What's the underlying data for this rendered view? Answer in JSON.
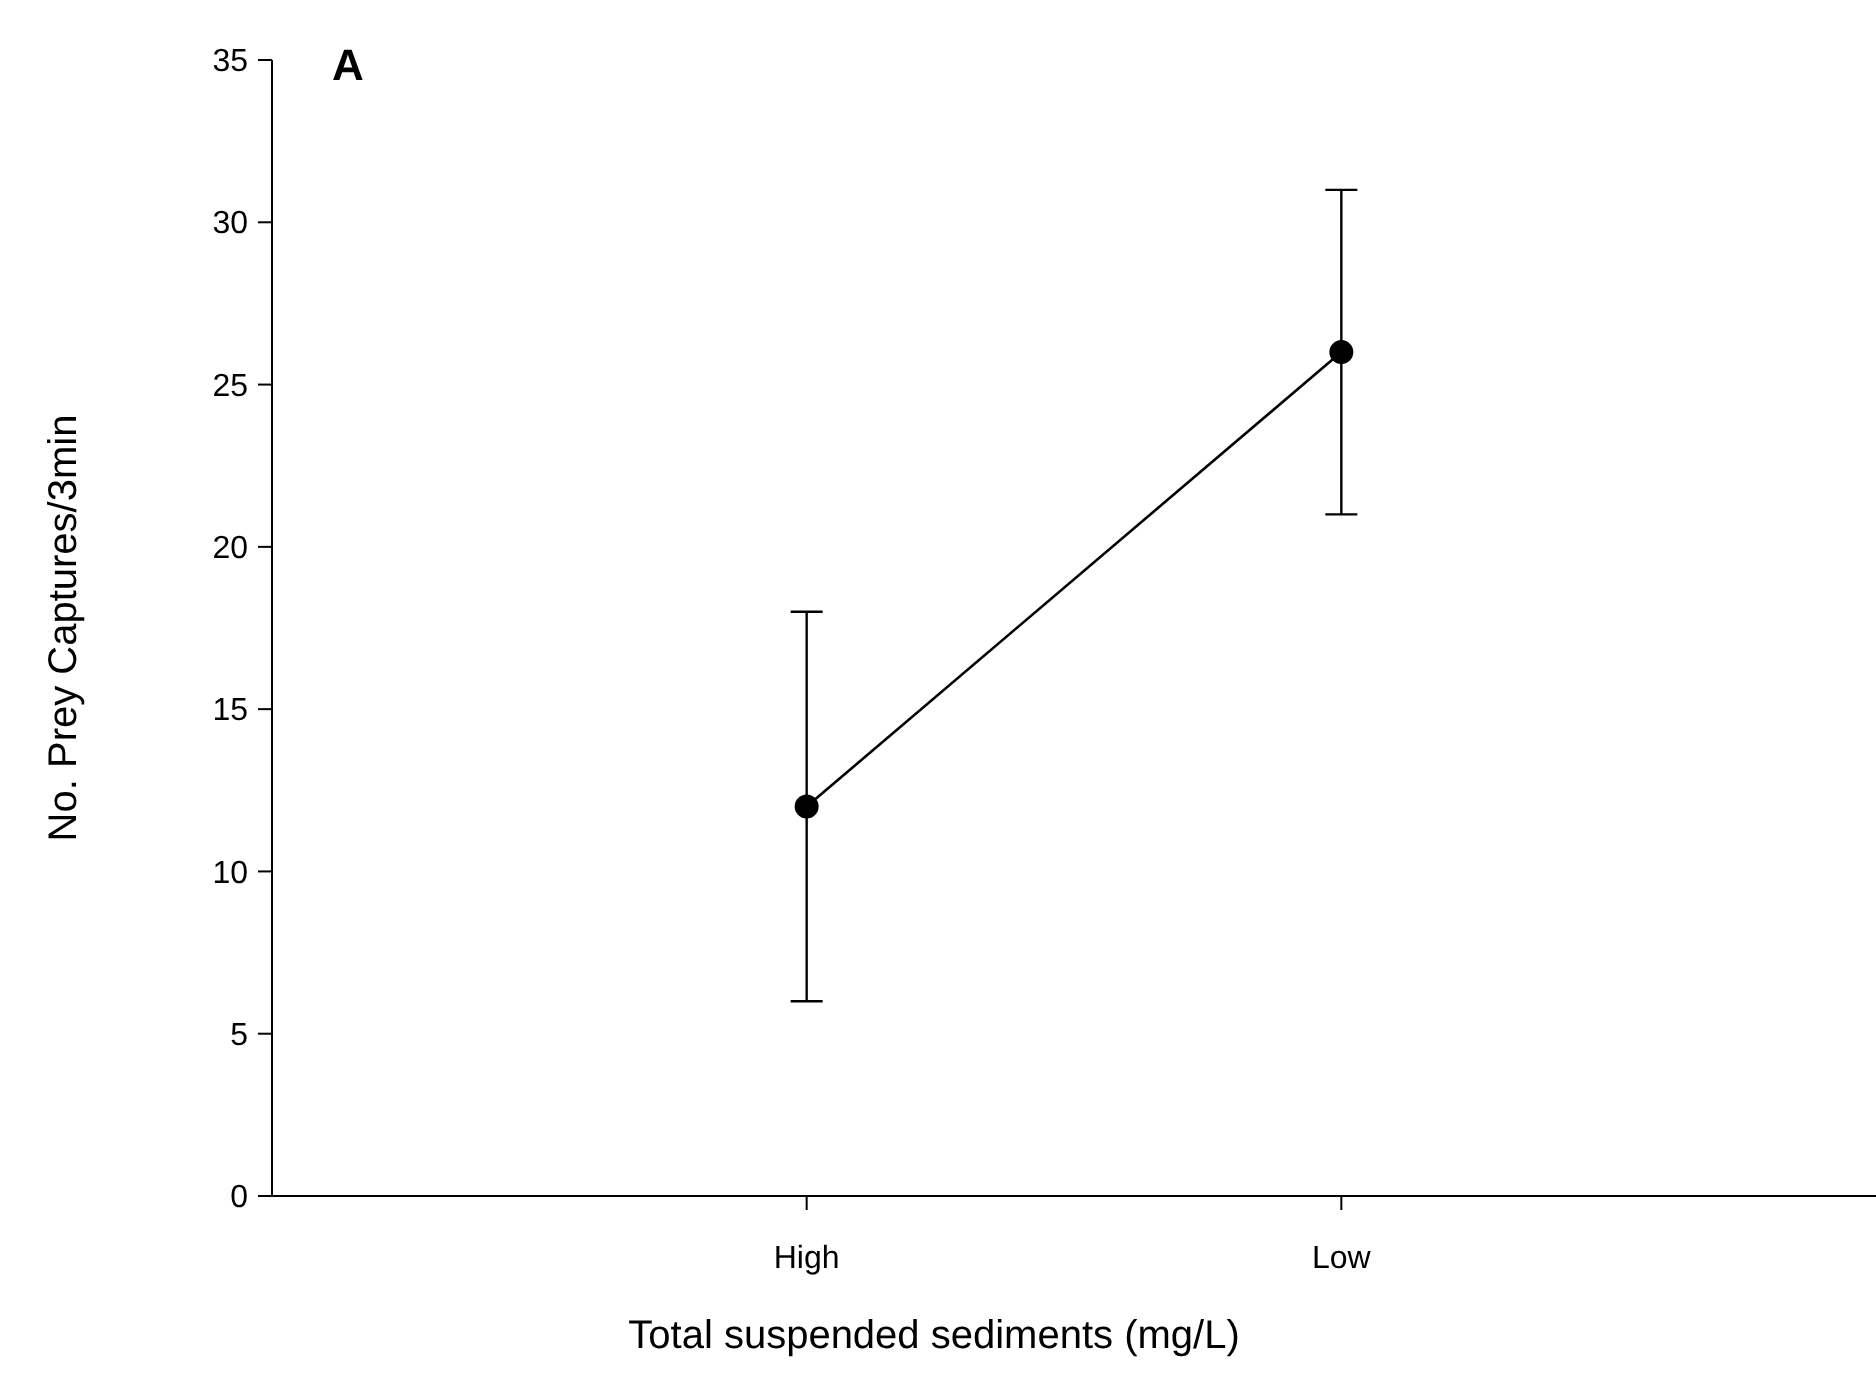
{
  "chart_data": {
    "type": "line",
    "xlabel": "Total suspended sediments (mg/L)",
    "ylabel": "No. Prey Captures/3min",
    "categories": [
      "High",
      "Low"
    ],
    "series": [
      {
        "color": "#000000",
        "values": [
          12,
          26
        ],
        "errors": [
          6,
          5
        ]
      }
    ],
    "ylim": [
      0,
      35
    ],
    "yticks": [
      0,
      5,
      10,
      15,
      20,
      25,
      30,
      35
    ],
    "grid": false,
    "marker": "circle",
    "line_style": "solid",
    "annotations": [
      "A"
    ]
  }
}
